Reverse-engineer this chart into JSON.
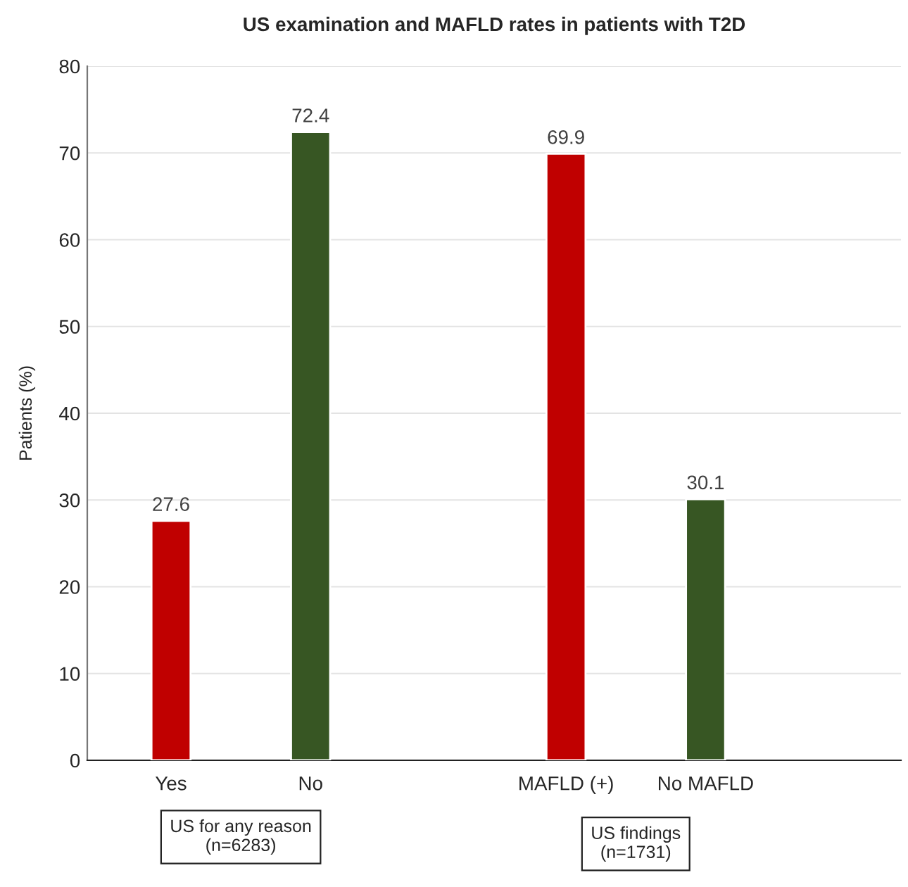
{
  "chart_data": {
    "type": "bar",
    "title": "US examination and MAFLD rates in patients with T2D",
    "ylabel": "Patients (%)",
    "categories": [
      "Yes",
      "No",
      "MAFLD (+)",
      "No MAFLD"
    ],
    "values": [
      27.6,
      72.4,
      69.9,
      30.1
    ],
    "colors": [
      "#c00000",
      "#375623",
      "#c00000",
      "#375623"
    ],
    "ylim": [
      0,
      80
    ],
    "yticks": [
      0,
      10,
      20,
      30,
      40,
      50,
      60,
      70,
      80
    ],
    "grid": "y",
    "data_labels": true,
    "annotations": [
      "US for any reason\n(n=6283)",
      "US findings\n(n=1731)"
    ]
  }
}
